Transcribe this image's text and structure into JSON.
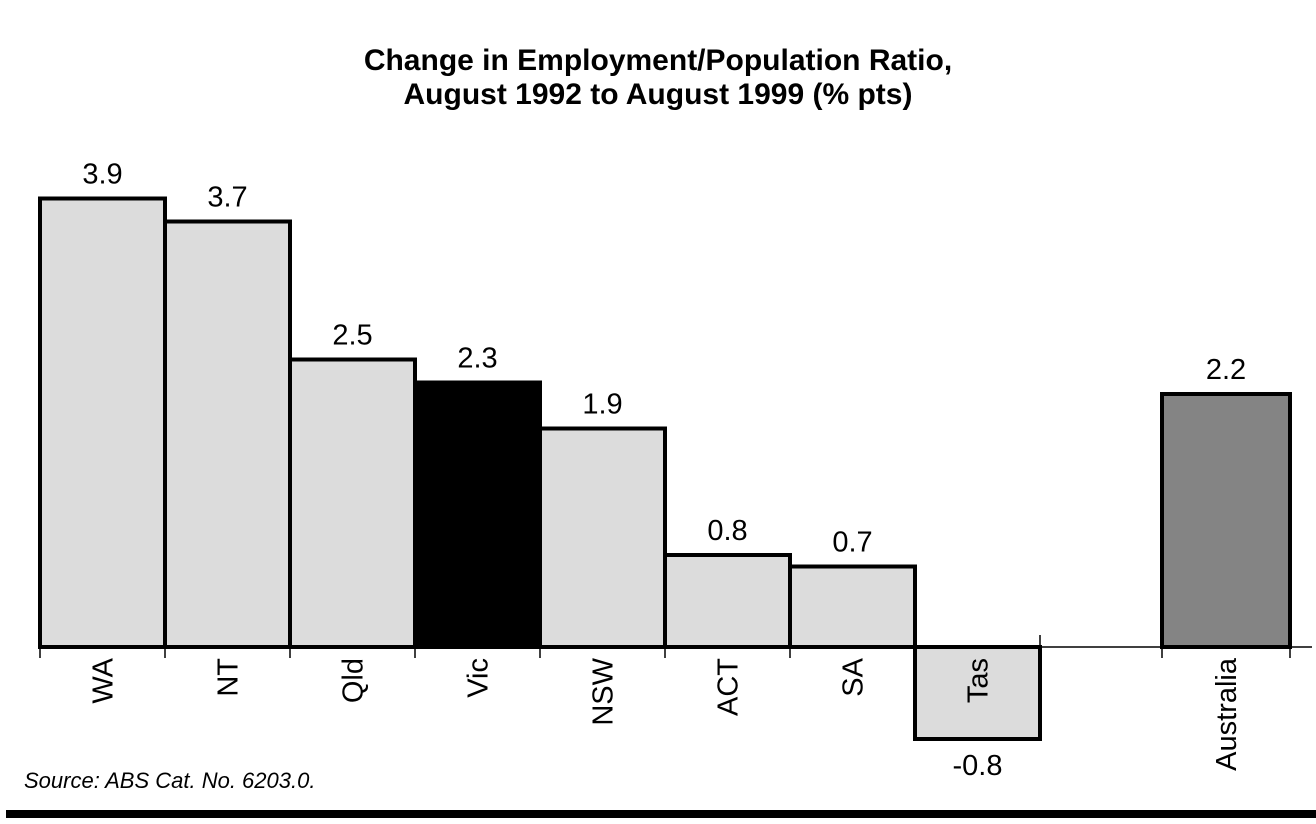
{
  "title": {
    "line1": "Change in Employment/Population Ratio,",
    "line2": "August 1992 to August 1999 (% pts)"
  },
  "source": "Source: ABS Cat. No. 6203.0.",
  "colors": {
    "bar_default": "#dcdcdc",
    "bar_highlight": "#000000",
    "bar_total": "#848484",
    "bar_border": "#000000",
    "axis": "#000000",
    "text": "#000000"
  },
  "chart_data": {
    "type": "bar",
    "title": "Change in Employment/Population Ratio, August 1992 to August 1999 (% pts)",
    "categories": [
      "WA",
      "NT",
      "Qld",
      "Vic",
      "NSW",
      "ACT",
      "SA",
      "Tas",
      "Australia"
    ],
    "values": [
      3.9,
      3.7,
      2.5,
      2.3,
      1.9,
      0.8,
      0.7,
      -0.8,
      2.2
    ],
    "value_labels": [
      "3.9",
      "3.7",
      "2.5",
      "2.3",
      "1.9",
      "0.8",
      "0.7",
      "-0.8",
      "2.2"
    ],
    "bar_colors": [
      "#dcdcdc",
      "#dcdcdc",
      "#dcdcdc",
      "#000000",
      "#dcdcdc",
      "#dcdcdc",
      "#dcdcdc",
      "#dcdcdc",
      "#848484"
    ],
    "highlighted_category": "Vic",
    "separated_category": "Australia",
    "xlabel": "",
    "ylabel": "",
    "ylim": [
      -1,
      4
    ],
    "grid": false,
    "legend": false,
    "category_label_rotation_deg": -90,
    "baseline_value": 0
  }
}
